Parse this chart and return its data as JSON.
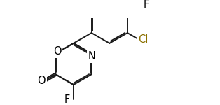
{
  "background_color": "#ffffff",
  "bond_color": "#1a1a1a",
  "label_fontsize": 10.5,
  "bond_width": 1.4,
  "fig_width": 3.14,
  "fig_height": 1.5,
  "dpi": 100,
  "xlim": [
    0.0,
    6.5
  ],
  "ylim": [
    0.0,
    3.1
  ],
  "cl_color": "#8B7000",
  "atom_bg": "#ffffff"
}
